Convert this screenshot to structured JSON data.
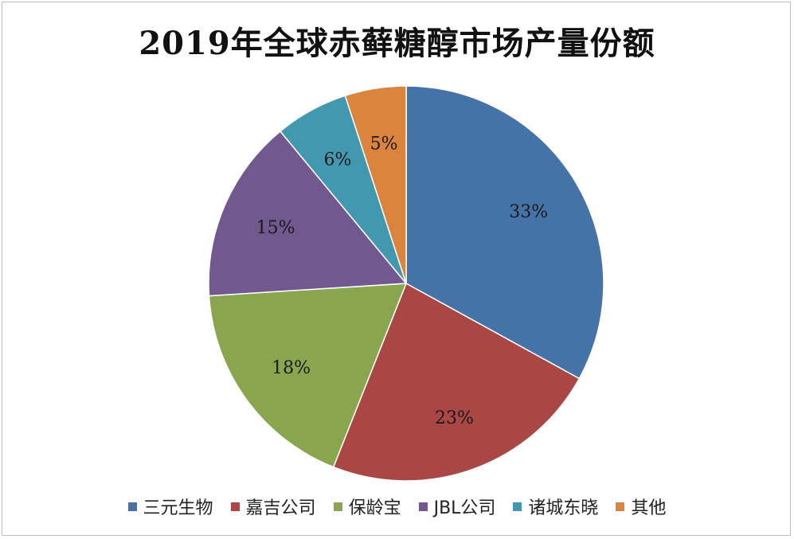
{
  "chart_data": {
    "type": "pie",
    "title": "2019年全球赤藓糖醇市场产量份额",
    "categories": [
      "三元生物",
      "嘉吉公司",
      "保龄宝",
      "JBL公司",
      "诸城东晓",
      "其他"
    ],
    "values": [
      33,
      23,
      18,
      15,
      6,
      5
    ],
    "labels": [
      "33%",
      "23%",
      "18%",
      "15%",
      "6%",
      "5%"
    ],
    "colors": [
      "#4572A7",
      "#AA4643",
      "#89A54E",
      "#71588F",
      "#4198AF",
      "#DB843D"
    ],
    "legend_position": "bottom"
  }
}
